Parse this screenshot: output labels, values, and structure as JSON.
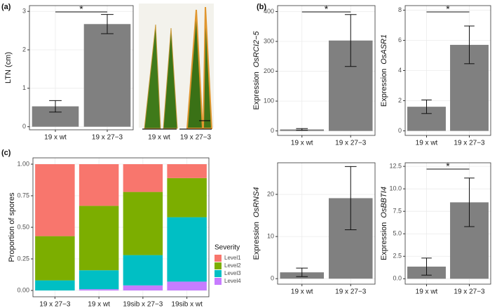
{
  "chart_data": [
    {
      "type": "bar",
      "panel_label": "(a)",
      "ylabel": "LTN (cm)",
      "categories": [
        "19 x wt",
        "19 x 27−3"
      ],
      "values": [
        0.53,
        2.67
      ],
      "errors": [
        0.15,
        0.25
      ],
      "color": "#808080",
      "ylim": [
        -0.08,
        3.15
      ],
      "yticks": [
        0,
        1,
        2,
        3
      ],
      "grid": true,
      "annotation": "*",
      "photo_labels": [
        "19 x wt",
        "19 x 27−3"
      ]
    },
    {
      "type": "bar",
      "panel_label": "(b)",
      "ylabel": "Expression",
      "gene": "OsRCI2−5",
      "categories": [
        "19 x wt",
        "19 x 27−3"
      ],
      "values": [
        5,
        303
      ],
      "errors": [
        3,
        87
      ],
      "color": "#808080",
      "ylim": [
        -15,
        420
      ],
      "yticks": [
        0,
        100,
        200,
        300,
        400
      ],
      "grid": true,
      "annotation": "*"
    },
    {
      "type": "bar",
      "ylabel": "Expression",
      "gene": "OsASR1",
      "categories": [
        "19 x wt",
        "19 x 27−3"
      ],
      "values": [
        1.6,
        5.7
      ],
      "errors": [
        0.45,
        1.25
      ],
      "color": "#808080",
      "ylim": [
        -0.3,
        8.3
      ],
      "yticks": [
        0,
        2,
        4,
        6,
        8
      ],
      "grid": true,
      "annotation": "*"
    },
    {
      "type": "bar",
      "ylabel": "Expression",
      "gene": "OsRNS4",
      "categories": [
        "19 x wt",
        "19 x 27−3"
      ],
      "values": [
        1.5,
        19.1
      ],
      "errors": [
        1.0,
        7.5
      ],
      "color": "#808080",
      "ylim": [
        -1.3,
        27.5
      ],
      "yticks": [
        0,
        10,
        20
      ],
      "grid": true
    },
    {
      "type": "bar",
      "ylabel": "Expression",
      "gene": "OsBBTI4",
      "categories": [
        "19 x wt",
        "19 x 27−3"
      ],
      "values": [
        1.35,
        8.5
      ],
      "errors": [
        0.95,
        2.7
      ],
      "color": "#808080",
      "ylim": [
        -0.6,
        12.9
      ],
      "yticks": [
        {
          "value": 0,
          "label": "0.0"
        },
        {
          "value": 2.5,
          "label": "2.5"
        },
        {
          "value": 5,
          "label": "5.0"
        },
        {
          "value": 7.5,
          "label": "7.5"
        },
        {
          "value": 10,
          "label": "10.0"
        },
        {
          "value": 12.5,
          "label": "12.5"
        }
      ],
      "grid": true,
      "annotation": "*"
    },
    {
      "type": "stacked_bar",
      "panel_label": "(c)",
      "ylabel": "Proportion of spores",
      "legend_title": "Severity",
      "categories": [
        "19 x 27−3",
        "19 x wt",
        "19sib x 27−3",
        "19sib x wt"
      ],
      "series": [
        {
          "name": "Level1",
          "color": "#F8766D",
          "values": [
            0.57,
            0.33,
            0.22,
            0.11
          ]
        },
        {
          "name": "Level2",
          "color": "#7CAE00",
          "values": [
            0.35,
            0.51,
            0.5,
            0.31
          ]
        },
        {
          "name": "Level3",
          "color": "#00BFC4",
          "values": [
            0.08,
            0.15,
            0.24,
            0.51
          ]
        },
        {
          "name": "Level4",
          "color": "#C77CFF",
          "values": [
            0,
            0.01,
            0.04,
            0.07
          ]
        }
      ],
      "ylim": [
        -0.05,
        1.05
      ],
      "yticks": [
        {
          "value": 0,
          "label": "0.00"
        },
        {
          "value": 0.25,
          "label": "0.25"
        },
        {
          "value": 0.5,
          "label": "0.50"
        },
        {
          "value": 0.75,
          "label": "0.75"
        },
        {
          "value": 1,
          "label": "1.00"
        }
      ],
      "grid": true
    }
  ]
}
